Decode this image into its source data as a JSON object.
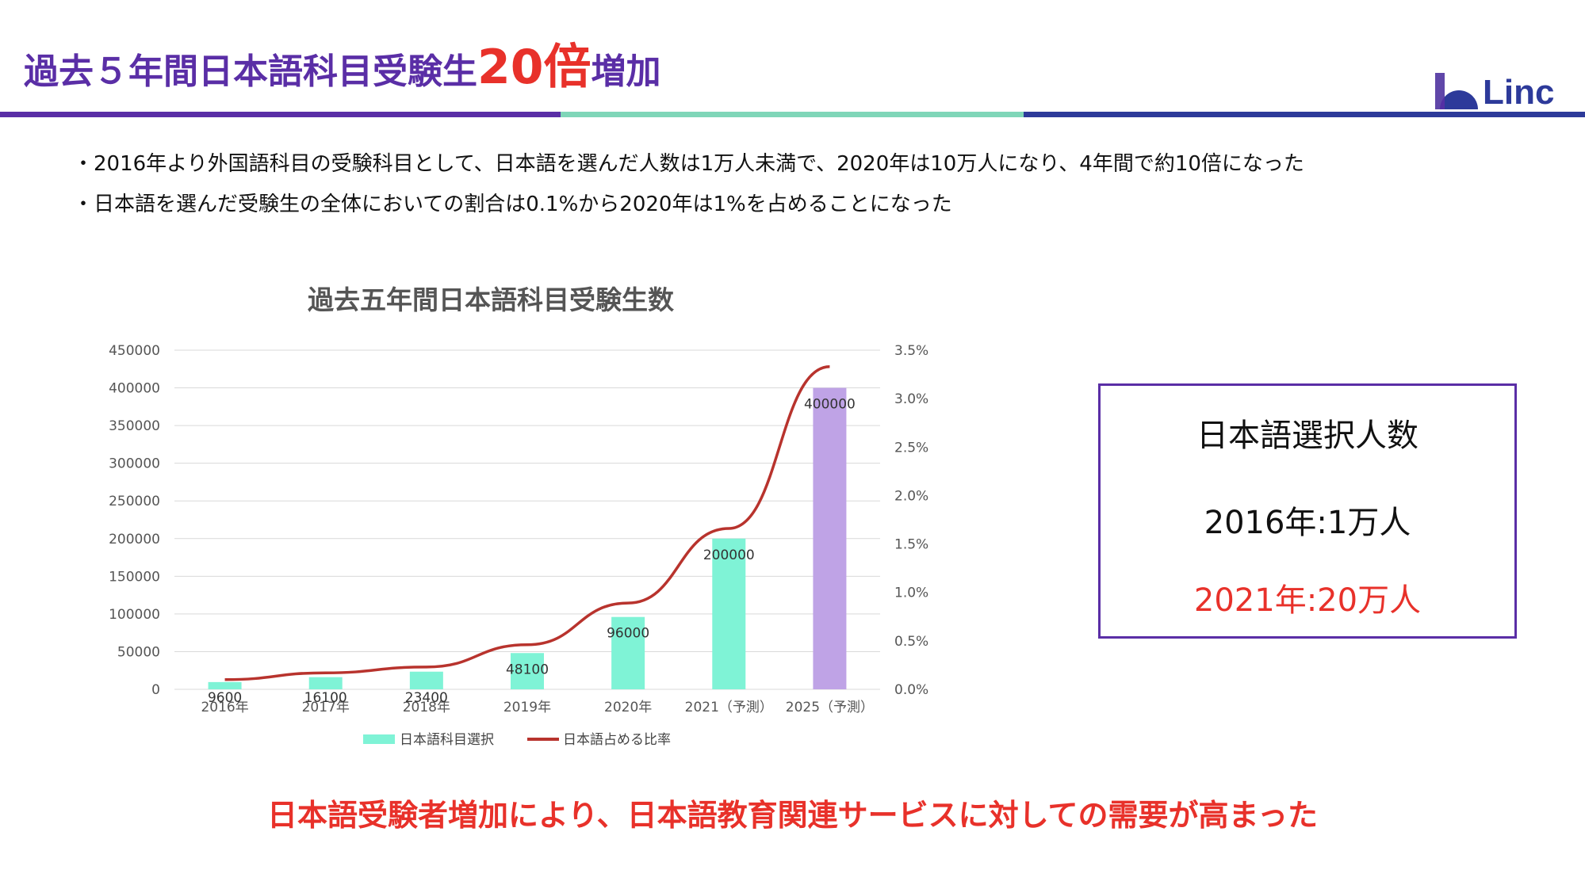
{
  "header": {
    "title_prefix": "過去５年間日本語科目受験生",
    "title_highlight": "20倍",
    "title_suffix": "増加",
    "logo_text": "Linc",
    "divider_colors": [
      "#5a2ea6",
      "#7fd6b8",
      "#2d3a9a"
    ]
  },
  "bullets": [
    "・2016年より外国語科目の受験科目として、日本語を選んだ人数は1万人未満で、2020年は10万人になり、4年間で約10倍になった",
    "・日本語を選んだ受験生の全体においての割合は0.1%から2020年は1%を占めることになった"
  ],
  "info_box": {
    "heading": "日本語選択人数",
    "line1": "2016年:1万人",
    "line2": "2021年:20万人"
  },
  "footer": "日本語受験者増加により、日本語教育関連サービスに対しての需要が高まった",
  "chart_data": {
    "type": "bar",
    "title": "過去五年間日本語科目受験生数",
    "categories": [
      "2016年",
      "2017年",
      "2018年",
      "2019年",
      "2020年",
      "2021（予測）",
      "2025（予測）"
    ],
    "series": [
      {
        "name": "日本語科目選択",
        "type": "bar",
        "axis": "left",
        "values": [
          9600,
          16100,
          23400,
          48100,
          96000,
          200000,
          400000
        ],
        "data_labels": [
          "9600",
          "16100",
          "23400",
          "48100",
          "96000",
          "200000",
          "400000"
        ],
        "colors": [
          "#7ff3d6",
          "#7ff3d6",
          "#7ff3d6",
          "#7ff3d6",
          "#7ff3d6",
          "#7ff3d6",
          "#bfa3e6"
        ]
      },
      {
        "name": "日本語占める比率",
        "type": "line",
        "axis": "right",
        "values": [
          0.1,
          0.17,
          0.23,
          0.46,
          0.89,
          1.66,
          3.33
        ],
        "color": "#b8332d"
      }
    ],
    "y_left": {
      "min": 0,
      "max": 450000,
      "ticks": [
        "0",
        "50000",
        "100000",
        "150000",
        "200000",
        "250000",
        "300000",
        "350000",
        "400000",
        "450000"
      ]
    },
    "y_right": {
      "min": 0,
      "max": 3.5,
      "ticks": [
        "0.0%",
        "0.5%",
        "1.0%",
        "1.5%",
        "2.0%",
        "2.5%",
        "3.0%",
        "3.5%"
      ]
    },
    "grid": true,
    "legend": "bottom"
  }
}
